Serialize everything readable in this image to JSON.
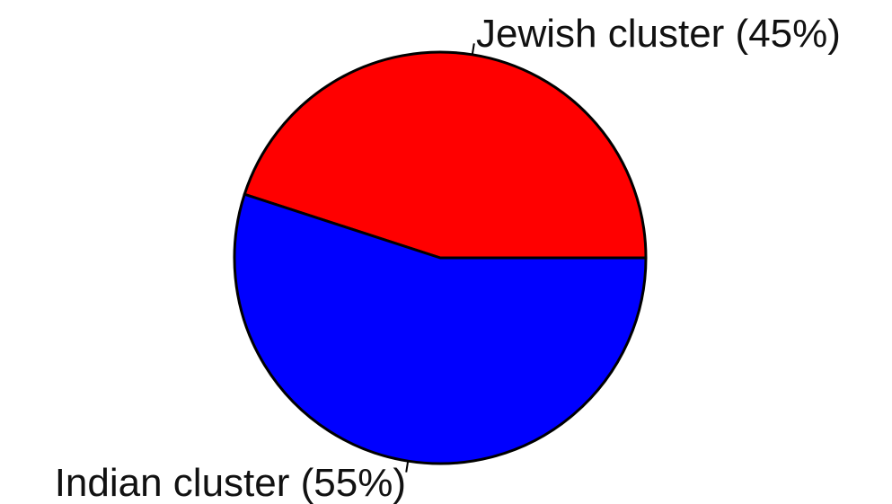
{
  "chart_data": {
    "type": "pie",
    "slices": [
      {
        "label": "Jewish cluster (45%)",
        "value": 45,
        "color": "#ff0000"
      },
      {
        "label": "Indian cluster (55%)",
        "value": 55,
        "color": "#0000ff"
      }
    ],
    "start_angle_deg": 0,
    "direction": "counterclockwise",
    "edge_color": "#000000"
  }
}
